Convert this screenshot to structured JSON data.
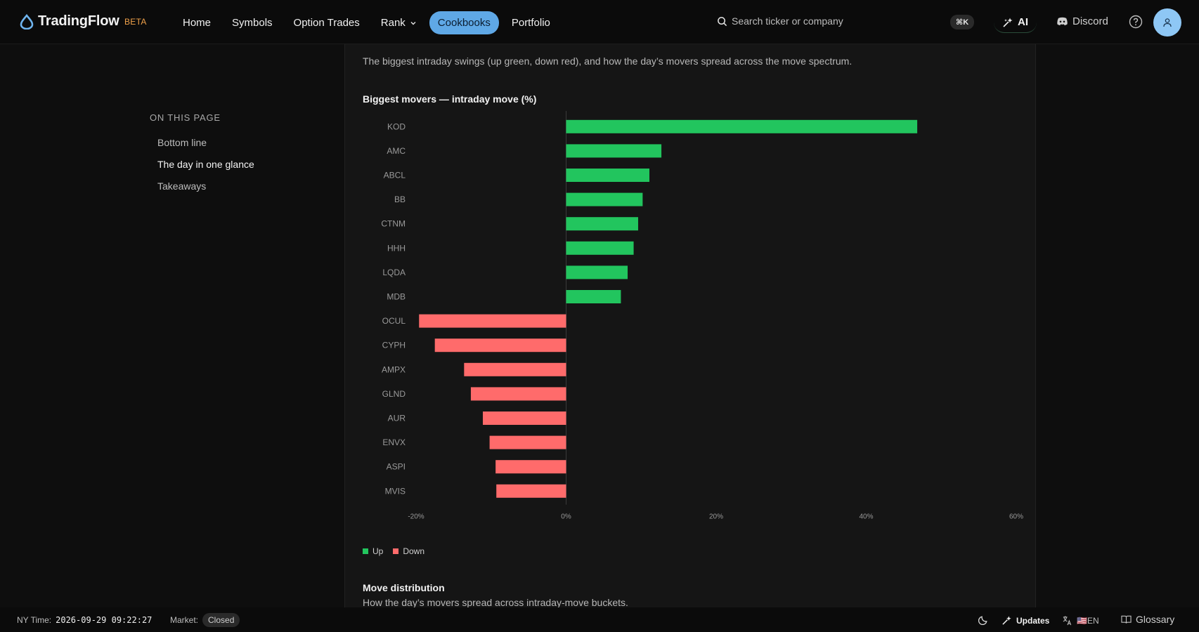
{
  "app": {
    "name": "TradingFlow",
    "beta": "BETA"
  },
  "nav": {
    "items": [
      {
        "label": "Home"
      },
      {
        "label": "Symbols"
      },
      {
        "label": "Option Trades"
      },
      {
        "label": "Rank"
      },
      {
        "label": "Cookbooks"
      },
      {
        "label": "Portfolio"
      }
    ],
    "active": "Cookbooks"
  },
  "search": {
    "placeholder": "Search ticker or company",
    "shortcut": "⌘K"
  },
  "header_actions": {
    "ai_label": "AI",
    "discord_label": "Discord"
  },
  "toc": {
    "title": "ON THIS PAGE",
    "items": [
      {
        "label": "Bottom line"
      },
      {
        "label": "The day in one glance"
      },
      {
        "label": "Takeaways"
      }
    ],
    "current": "The day in one glance"
  },
  "content": {
    "intro": "The biggest intraday swings (up green, down red), and how the day’s movers spread across the move spectrum.",
    "chart_title": "Biggest movers — intraday move (%)",
    "legend": {
      "up": "Up",
      "down": "Down"
    },
    "section_title": "Move distribution",
    "section_subtitle": "How the day’s movers spread across intraday-move buckets."
  },
  "chart_data": {
    "type": "bar",
    "orientation": "horizontal",
    "title": "Biggest movers — intraday move (%)",
    "categories": [
      "KOD",
      "AMC",
      "ABCL",
      "BB",
      "CTNM",
      "HHH",
      "LQDA",
      "MDB",
      "OCUL",
      "CYPH",
      "AMPX",
      "GLND",
      "AUR",
      "ENVX",
      "ASPI",
      "MVIS"
    ],
    "values": [
      46.8,
      12.7,
      11.1,
      10.2,
      9.6,
      9.0,
      8.2,
      7.3,
      -19.6,
      -17.5,
      -13.6,
      -12.7,
      -11.1,
      -10.2,
      -9.4,
      -9.3
    ],
    "xlim": [
      -20,
      60
    ],
    "xticks": [
      "-20%",
      "0%",
      "20%",
      "40%",
      "60%"
    ],
    "xtick_values": [
      -20,
      0,
      20,
      40,
      60
    ],
    "colors": {
      "up": "#22c55e",
      "down": "#ff6b6b"
    },
    "legend": [
      "Up",
      "Down"
    ],
    "legend_position": "bottom-left",
    "grid": false
  },
  "footer": {
    "ny_time_label": "NY Time:",
    "ny_time": "2026-09-29 09:22:27",
    "market_label": "Market:",
    "market_status": "Closed",
    "updates_label": "Updates",
    "lang_label": "🇺🇸EN",
    "glossary_label": "Glossary"
  }
}
